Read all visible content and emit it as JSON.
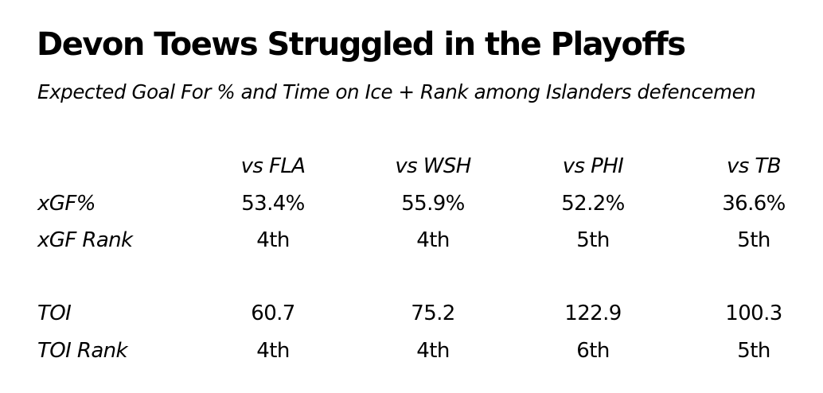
{
  "title": "Devon Toews Struggled in the Playoffs",
  "subtitle": "Expected Goal For % and Time on Ice + Rank among Islanders defencemen",
  "chart_data": {
    "type": "table",
    "columns": [
      "vs FLA",
      "vs WSH",
      "vs PHI",
      "vs TB"
    ],
    "rows": [
      {
        "label": "xGF%",
        "values": [
          "53.4%",
          "55.9%",
          "52.2%",
          "36.6%"
        ]
      },
      {
        "label": "xGF Rank",
        "values": [
          "4th",
          "4th",
          "5th",
          "5th"
        ]
      },
      {
        "label": "TOI",
        "values": [
          "60.7",
          "75.2",
          "122.9",
          "100.3"
        ]
      },
      {
        "label": "TOI Rank",
        "values": [
          "4th",
          "4th",
          "6th",
          "5th"
        ]
      }
    ]
  }
}
